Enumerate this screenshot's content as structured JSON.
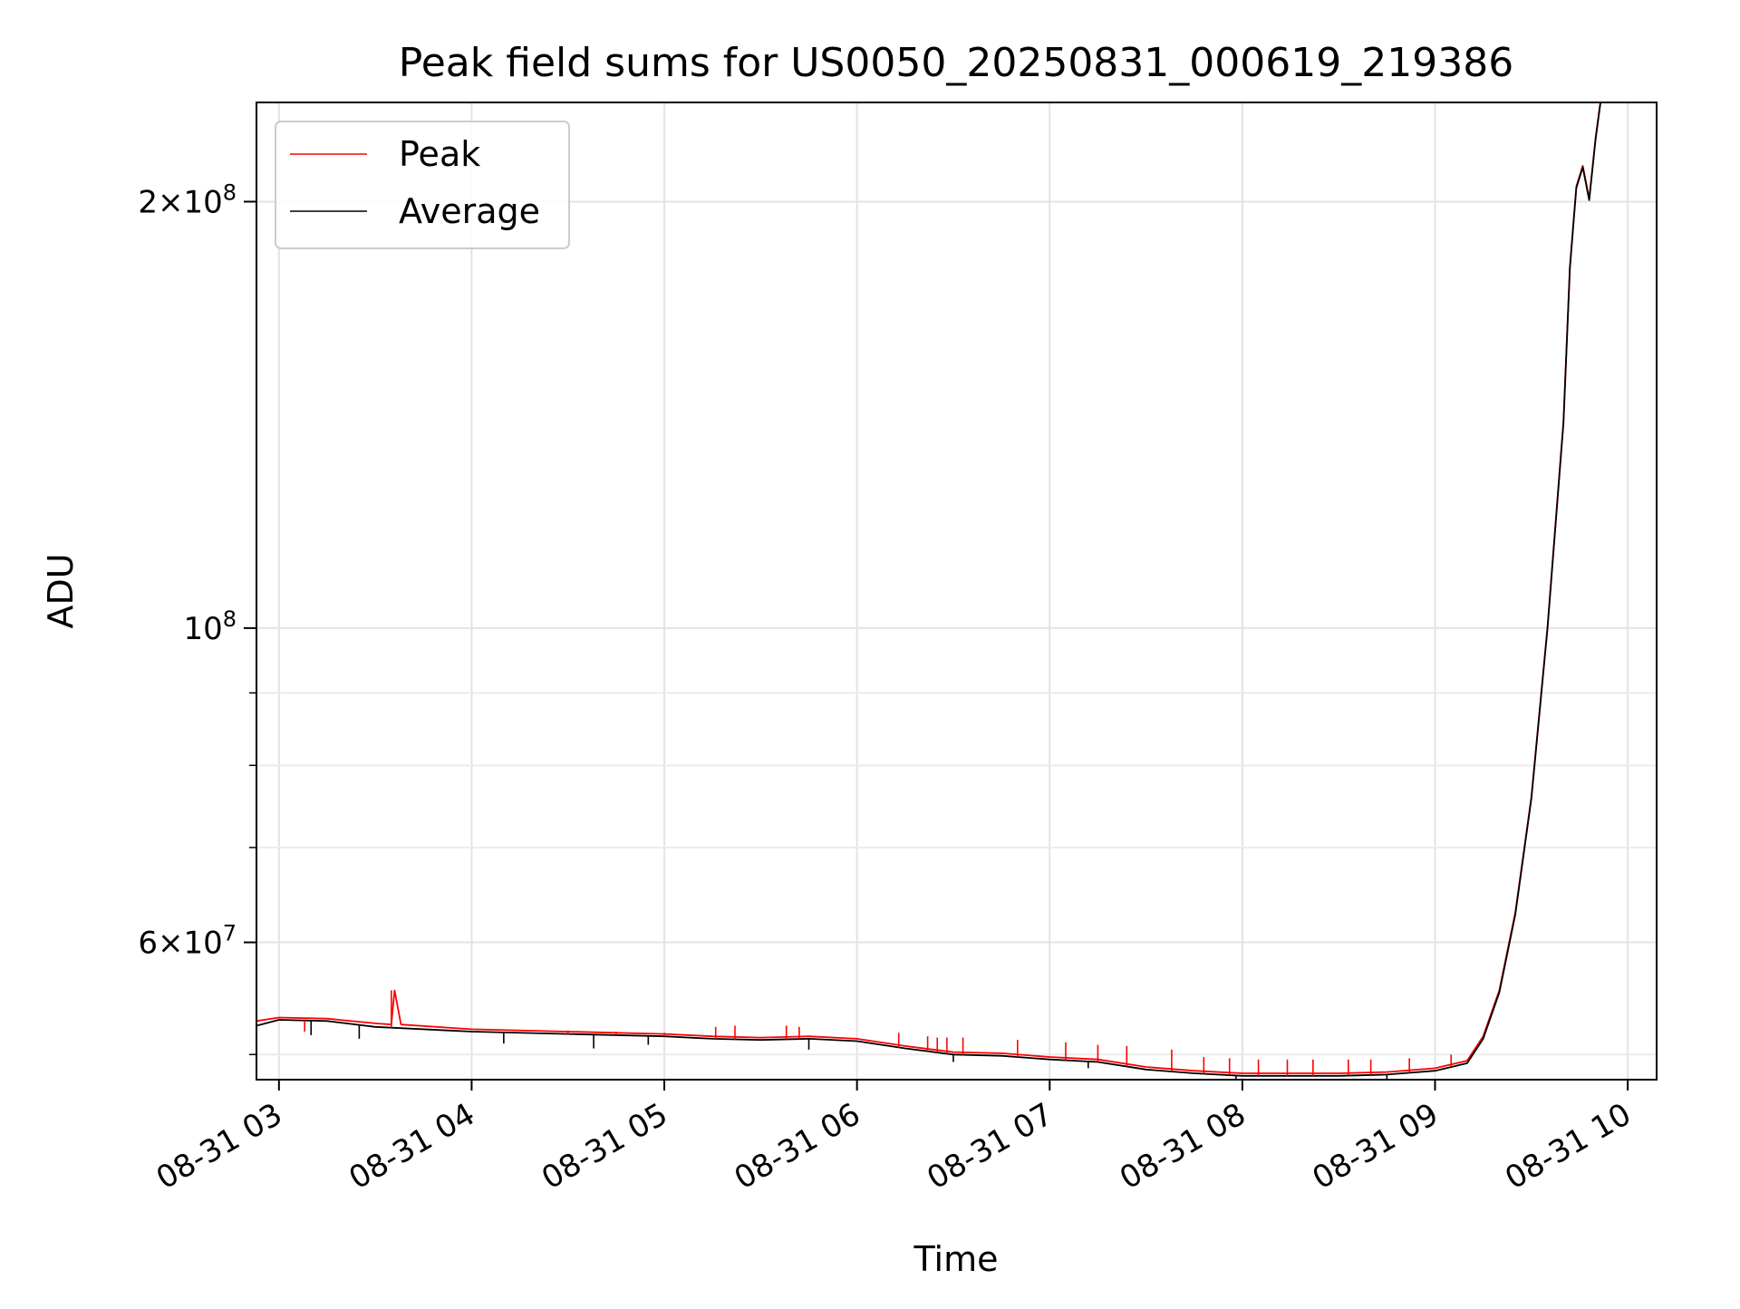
{
  "chart_data": {
    "type": "line",
    "title": "Peak field sums for US0050_20250831_000619_219386",
    "xlabel": "Time",
    "ylabel": "ADU",
    "x_axis": "time",
    "y_scale": "log",
    "ylim": [
      48000000,
      235000000
    ],
    "xlim": [
      "2025-08-31 02:53",
      "2025-08-31 10:09"
    ],
    "grid": true,
    "legend_position": "upper-left",
    "x_ticks": [
      {
        "label": "08-31 03",
        "t": "2025-08-31 03:00"
      },
      {
        "label": "08-31 04",
        "t": "2025-08-31 04:00"
      },
      {
        "label": "08-31 05",
        "t": "2025-08-31 05:00"
      },
      {
        "label": "08-31 06",
        "t": "2025-08-31 06:00"
      },
      {
        "label": "08-31 07",
        "t": "2025-08-31 07:00"
      },
      {
        "label": "08-31 08",
        "t": "2025-08-31 08:00"
      },
      {
        "label": "08-31 09",
        "t": "2025-08-31 09:00"
      },
      {
        "label": "08-31 10",
        "t": "2025-08-31 10:00"
      }
    ],
    "y_ticks_major": [
      {
        "value": 200000000,
        "base": "2×10",
        "exp": "8"
      },
      {
        "value": 100000000,
        "base": "10",
        "exp": "8"
      },
      {
        "value": 60000000,
        "base": "6×10",
        "exp": "7"
      }
    ],
    "y_ticks_minor": [
      50000000,
      70000000,
      80000000,
      90000000
    ],
    "series": [
      {
        "name": "Peak",
        "color": "#ff0000",
        "x": [
          "2025-08-31 02:53",
          "2025-08-31 03:00",
          "2025-08-31 03:15",
          "2025-08-31 03:30",
          "2025-08-31 03:35",
          "2025-08-31 03:36",
          "2025-08-31 03:38",
          "2025-08-31 04:00",
          "2025-08-31 04:30",
          "2025-08-31 05:00",
          "2025-08-31 05:15",
          "2025-08-31 05:30",
          "2025-08-31 05:45",
          "2025-08-31 06:00",
          "2025-08-31 06:15",
          "2025-08-31 06:30",
          "2025-08-31 06:45",
          "2025-08-31 07:00",
          "2025-08-31 07:15",
          "2025-08-31 07:30",
          "2025-08-31 07:45",
          "2025-08-31 08:00",
          "2025-08-31 08:30",
          "2025-08-31 08:45",
          "2025-08-31 09:00",
          "2025-08-31 09:10",
          "2025-08-31 09:15",
          "2025-08-31 09:20",
          "2025-08-31 09:25",
          "2025-08-31 09:30",
          "2025-08-31 09:35",
          "2025-08-31 09:40",
          "2025-08-31 09:42",
          "2025-08-31 09:44",
          "2025-08-31 09:46",
          "2025-08-31 09:48",
          "2025-08-31 09:50",
          "2025-08-31 09:52"
        ],
        "y": [
          52800000,
          53100000,
          53000000,
          52600000,
          52500000,
          55500000,
          52500000,
          52100000,
          51900000,
          51700000,
          51500000,
          51400000,
          51500000,
          51300000,
          50700000,
          50200000,
          50100000,
          49800000,
          49600000,
          49000000,
          48700000,
          48500000,
          48500000,
          48600000,
          48900000,
          49500000,
          51500000,
          55500000,
          63000000,
          76000000,
          100000000,
          140000000,
          180000000,
          205000000,
          212000000,
          201000000,
          222000000,
          240000000
        ]
      },
      {
        "name": "Average",
        "color": "#000000",
        "x": [
          "2025-08-31 02:53",
          "2025-08-31 03:00",
          "2025-08-31 03:15",
          "2025-08-31 03:30",
          "2025-08-31 04:00",
          "2025-08-31 04:30",
          "2025-08-31 05:00",
          "2025-08-31 05:15",
          "2025-08-31 05:30",
          "2025-08-31 05:45",
          "2025-08-31 06:00",
          "2025-08-31 06:15",
          "2025-08-31 06:30",
          "2025-08-31 06:45",
          "2025-08-31 07:00",
          "2025-08-31 07:15",
          "2025-08-31 07:30",
          "2025-08-31 07:45",
          "2025-08-31 08:00",
          "2025-08-31 08:30",
          "2025-08-31 08:45",
          "2025-08-31 09:00",
          "2025-08-31 09:10",
          "2025-08-31 09:15",
          "2025-08-31 09:20",
          "2025-08-31 09:25",
          "2025-08-31 09:30",
          "2025-08-31 09:35",
          "2025-08-31 09:40",
          "2025-08-31 09:42",
          "2025-08-31 09:44",
          "2025-08-31 09:46",
          "2025-08-31 09:48",
          "2025-08-31 09:50",
          "2025-08-31 09:52"
        ],
        "y": [
          52400000,
          52900000,
          52800000,
          52300000,
          51900000,
          51700000,
          51500000,
          51300000,
          51200000,
          51300000,
          51100000,
          50500000,
          50000000,
          49900000,
          49600000,
          49400000,
          48800000,
          48500000,
          48300000,
          48300000,
          48400000,
          48700000,
          49300000,
          51300000,
          55300000,
          62800000,
          75800000,
          99800000,
          139500000,
          179500000,
          204500000,
          211500000,
          200500000,
          221500000,
          239500000
        ]
      }
    ],
    "peak_spikes": [
      {
        "t": "2025-08-31 03:08",
        "y": 51900000
      },
      {
        "t": "2025-08-31 03:35",
        "y": 55500000
      },
      {
        "t": "2025-08-31 04:30",
        "y": 52000000
      },
      {
        "t": "2025-08-31 04:45",
        "y": 51900000
      },
      {
        "t": "2025-08-31 05:00",
        "y": 51800000
      },
      {
        "t": "2025-08-31 05:16",
        "y": 52300000
      },
      {
        "t": "2025-08-31 05:22",
        "y": 52400000
      },
      {
        "t": "2025-08-31 05:38",
        "y": 52400000
      },
      {
        "t": "2025-08-31 05:42",
        "y": 52300000
      },
      {
        "t": "2025-08-31 06:13",
        "y": 51800000
      },
      {
        "t": "2025-08-31 06:22",
        "y": 51500000
      },
      {
        "t": "2025-08-31 06:25",
        "y": 51400000
      },
      {
        "t": "2025-08-31 06:28",
        "y": 51400000
      },
      {
        "t": "2025-08-31 06:33",
        "y": 51400000
      },
      {
        "t": "2025-08-31 06:50",
        "y": 51200000
      },
      {
        "t": "2025-08-31 07:05",
        "y": 51000000
      },
      {
        "t": "2025-08-31 07:15",
        "y": 50800000
      },
      {
        "t": "2025-08-31 07:24",
        "y": 50700000
      },
      {
        "t": "2025-08-31 07:38",
        "y": 50400000
      },
      {
        "t": "2025-08-31 07:48",
        "y": 49800000
      },
      {
        "t": "2025-08-31 07:56",
        "y": 49700000
      },
      {
        "t": "2025-08-31 08:05",
        "y": 49600000
      },
      {
        "t": "2025-08-31 08:14",
        "y": 49600000
      },
      {
        "t": "2025-08-31 08:22",
        "y": 49600000
      },
      {
        "t": "2025-08-31 08:33",
        "y": 49600000
      },
      {
        "t": "2025-08-31 08:40",
        "y": 49600000
      },
      {
        "t": "2025-08-31 08:52",
        "y": 49700000
      },
      {
        "t": "2025-08-31 09:05",
        "y": 50000000
      }
    ],
    "average_dips": [
      {
        "t": "2025-08-31 03:10",
        "y": 51600000
      },
      {
        "t": "2025-08-31 03:25",
        "y": 51300000
      },
      {
        "t": "2025-08-31 04:10",
        "y": 50900000
      },
      {
        "t": "2025-08-31 04:38",
        "y": 50500000
      },
      {
        "t": "2025-08-31 04:55",
        "y": 50800000
      },
      {
        "t": "2025-08-31 05:45",
        "y": 50400000
      },
      {
        "t": "2025-08-31 06:30",
        "y": 49400000
      },
      {
        "t": "2025-08-31 07:12",
        "y": 48900000
      },
      {
        "t": "2025-08-31 07:58",
        "y": 47800000
      },
      {
        "t": "2025-08-31 08:45",
        "y": 47900000
      }
    ]
  }
}
